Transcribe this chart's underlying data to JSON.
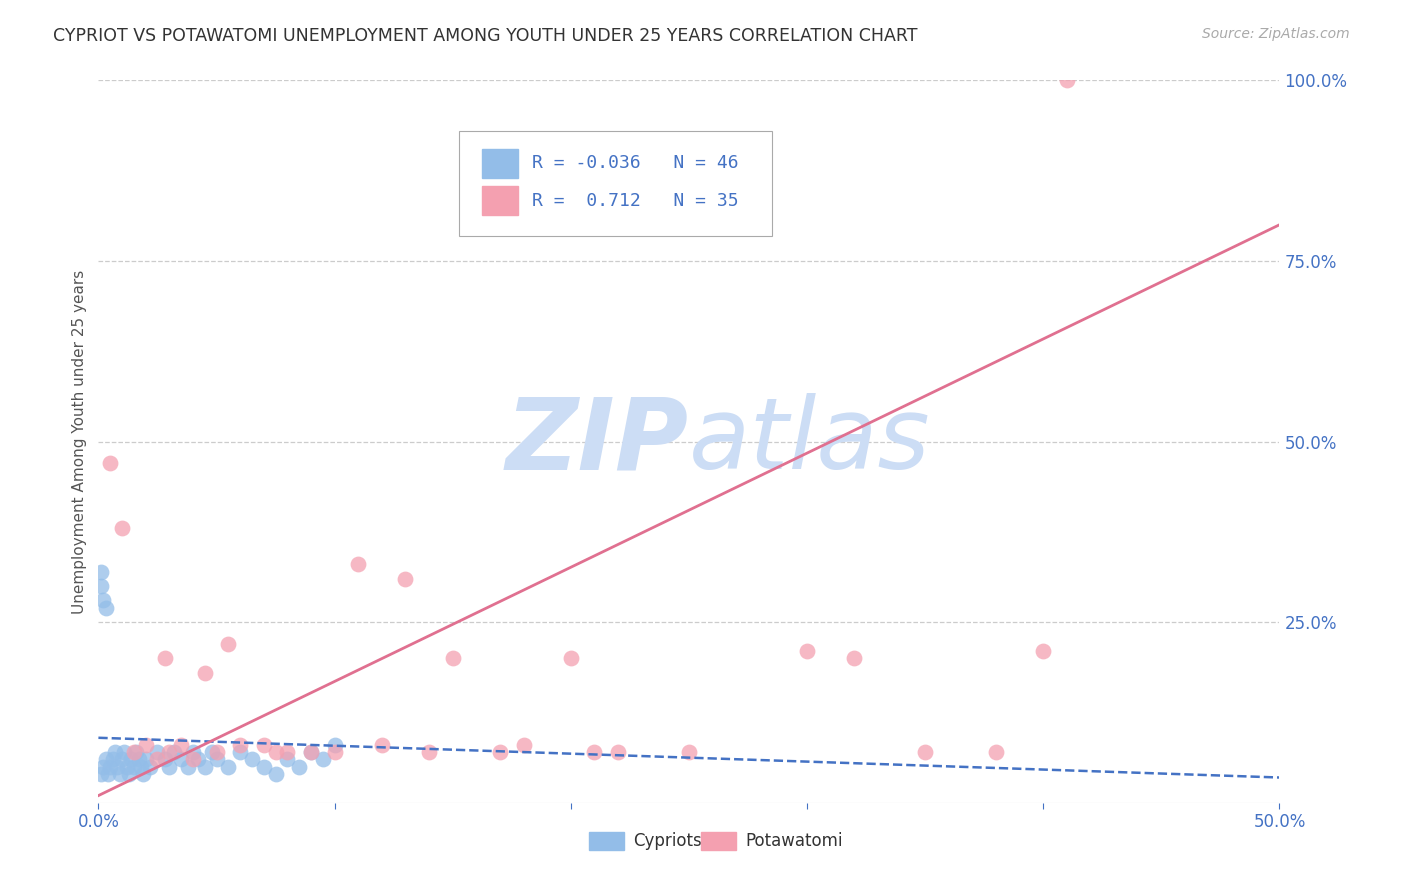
{
  "title": "CYPRIOT VS POTAWATOMI UNEMPLOYMENT AMONG YOUTH UNDER 25 YEARS CORRELATION CHART",
  "source": "Source: ZipAtlas.com",
  "ylabel": "Unemployment Among Youth under 25 years",
  "xlim": [
    0.0,
    0.5
  ],
  "ylim": [
    0.0,
    1.0
  ],
  "xtick_labels": [
    "0.0%",
    "",
    "",
    "",
    "",
    "50.0%"
  ],
  "xtick_vals": [
    0.0,
    0.1,
    0.2,
    0.3,
    0.4,
    0.5
  ],
  "ytick_labels": [
    "25.0%",
    "50.0%",
    "75.0%",
    "100.0%"
  ],
  "ytick_vals": [
    0.25,
    0.5,
    0.75,
    1.0
  ],
  "cypriot_color": "#93bde8",
  "potawatomi_color": "#f4a0b0",
  "cypriot_R": -0.036,
  "cypriot_N": 46,
  "potawatomi_R": 0.712,
  "potawatomi_N": 35,
  "legend_label_1": "Cypriots",
  "legend_label_2": "Potawatomi",
  "axis_label_color": "#4472c4",
  "watermark_zip": "ZIP",
  "watermark_atlas": "atlas",
  "watermark_color": "#ccddf5",
  "cypriot_line_color": "#4472c4",
  "potawatomi_line_color": "#e07090",
  "grid_color": "#cccccc",
  "background_color": "#ffffff",
  "cypriot_x": [
    0.001,
    0.002,
    0.003,
    0.004,
    0.005,
    0.006,
    0.007,
    0.008,
    0.009,
    0.01,
    0.011,
    0.012,
    0.013,
    0.014,
    0.015,
    0.016,
    0.017,
    0.018,
    0.019,
    0.02,
    0.022,
    0.025,
    0.028,
    0.03,
    0.032,
    0.035,
    0.038,
    0.04,
    0.042,
    0.045,
    0.048,
    0.05,
    0.055,
    0.06,
    0.065,
    0.07,
    0.075,
    0.08,
    0.085,
    0.09,
    0.095,
    0.1,
    0.001,
    0.002,
    0.003,
    0.001
  ],
  "cypriot_y": [
    0.04,
    0.05,
    0.06,
    0.04,
    0.05,
    0.06,
    0.07,
    0.05,
    0.04,
    0.06,
    0.07,
    0.05,
    0.04,
    0.06,
    0.05,
    0.07,
    0.06,
    0.05,
    0.04,
    0.06,
    0.05,
    0.07,
    0.06,
    0.05,
    0.07,
    0.06,
    0.05,
    0.07,
    0.06,
    0.05,
    0.07,
    0.06,
    0.05,
    0.07,
    0.06,
    0.05,
    0.04,
    0.06,
    0.05,
    0.07,
    0.06,
    0.08,
    0.3,
    0.28,
    0.27,
    0.32
  ],
  "potawatomi_x": [
    0.005,
    0.01,
    0.015,
    0.02,
    0.025,
    0.028,
    0.03,
    0.035,
    0.04,
    0.045,
    0.05,
    0.055,
    0.06,
    0.07,
    0.075,
    0.08,
    0.09,
    0.1,
    0.11,
    0.12,
    0.13,
    0.14,
    0.15,
    0.17,
    0.18,
    0.2,
    0.21,
    0.22,
    0.25,
    0.3,
    0.32,
    0.35,
    0.38,
    0.4,
    0.41
  ],
  "potawatomi_y": [
    0.47,
    0.38,
    0.07,
    0.08,
    0.06,
    0.2,
    0.07,
    0.08,
    0.06,
    0.18,
    0.07,
    0.22,
    0.08,
    0.08,
    0.07,
    0.07,
    0.07,
    0.07,
    0.33,
    0.08,
    0.31,
    0.07,
    0.2,
    0.07,
    0.08,
    0.2,
    0.07,
    0.07,
    0.07,
    0.21,
    0.2,
    0.07,
    0.07,
    0.21,
    1.0
  ],
  "pot_line_x0": 0.0,
  "pot_line_y0": 0.01,
  "pot_line_x1": 0.5,
  "pot_line_y1": 0.8,
  "cyp_line_x0": 0.0,
  "cyp_line_y0": 0.09,
  "cyp_line_x1": 0.5,
  "cyp_line_y1": 0.035
}
